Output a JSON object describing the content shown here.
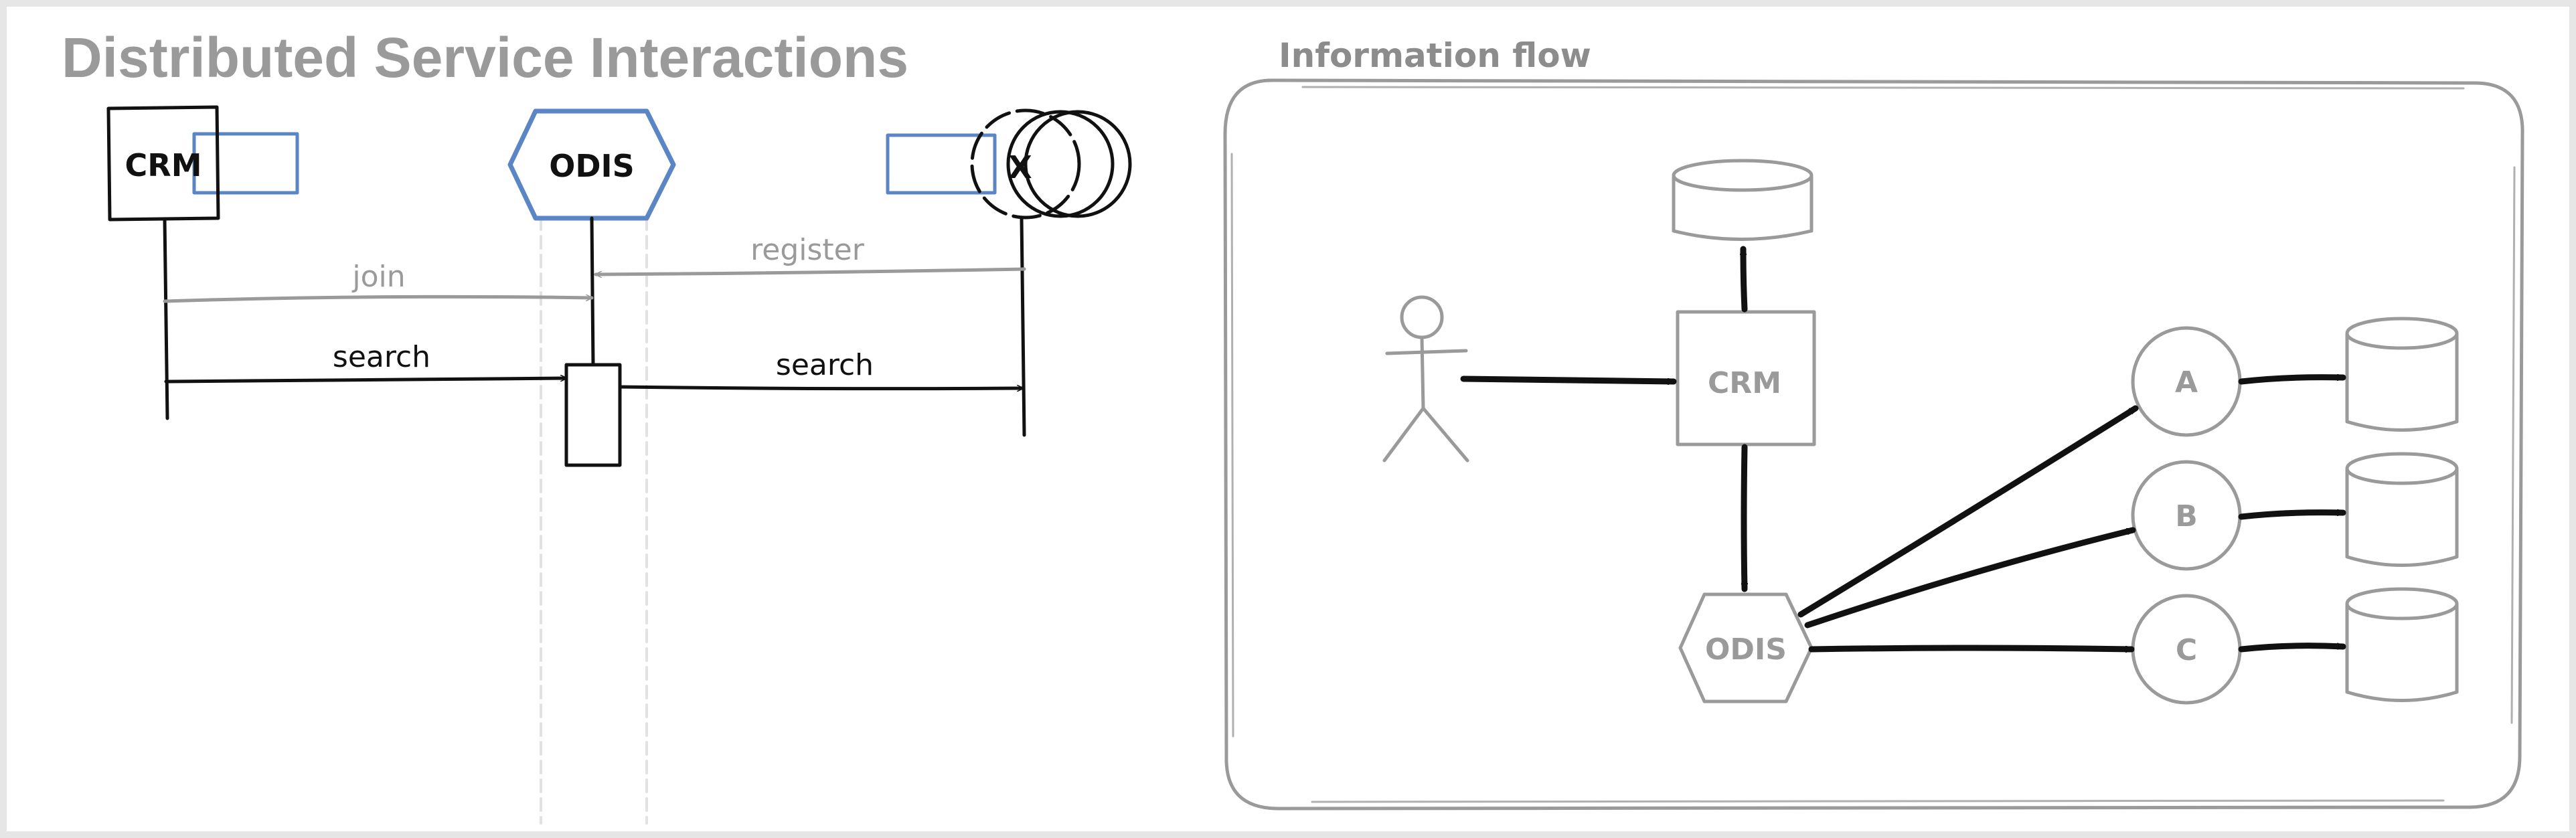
{
  "left_panel": {
    "title": "Distributed Service Interactions",
    "participants": {
      "crm": "CRM",
      "odis": "ODIS",
      "service": "X"
    },
    "messages": {
      "join": "join",
      "register": "register",
      "search_crm_odis": "search",
      "search_odis_service": "search"
    }
  },
  "right_panel": {
    "title": "Information flow",
    "nodes": {
      "crm": "CRM",
      "odis": "ODIS",
      "a": "A",
      "b": "B",
      "c": "C"
    }
  },
  "colors": {
    "black_stroke": "#111111",
    "gray_stroke": "#9a9a9a",
    "blue_stroke": "#5b86c6",
    "blue_hatch": "#c9d8ef"
  }
}
